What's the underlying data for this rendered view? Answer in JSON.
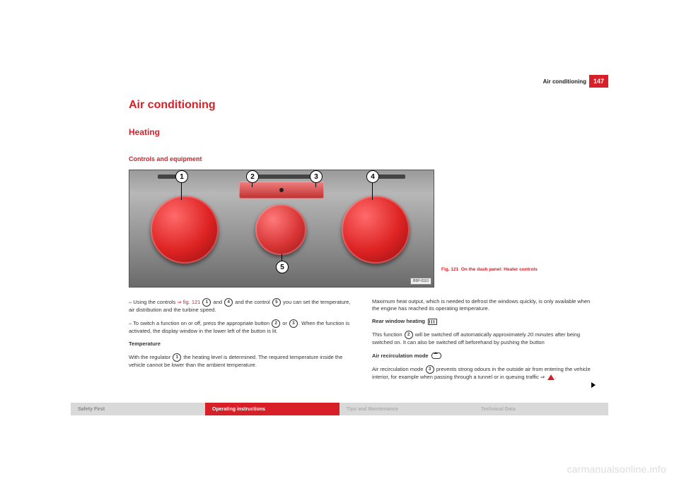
{
  "header": {
    "chapter": "Air conditioning",
    "page_number": "147"
  },
  "title": "Air conditioning",
  "subtitle": "Heating",
  "section": "Controls and equipment",
  "figure": {
    "image_badge": "B5P-0110",
    "caption_prefix": "Fig. 121",
    "caption_text": "On the dash panel: Heater controls",
    "callouts": {
      "c1": "1",
      "c2": "2",
      "c3": "3",
      "c4": "4",
      "c5": "5"
    },
    "colors": {
      "panel_bg_top": "#9a9a9a",
      "panel_bg_bottom": "#6a6a6a",
      "dial_color": "#d22",
      "accent_red": "#d61f26"
    }
  },
  "left": {
    "p1a": "– Using the controls ",
    "p1_link": "⇒ fig. 121",
    "p1b": " and ",
    "p1c": " and the control ",
    "p1d": " you can set the temperature, air distribution and the turbine speed.",
    "p2a": "– To switch a function on or off, press the appropriate button ",
    "p2b": " or ",
    "p2c": ". When the function is activated, the display window in the lower left of the button is lit.",
    "h_temp": "Temperature",
    "p3a": "With the regulator ",
    "p3b": " the heating level is determined. The required temperature inside the vehicle cannot be lower than the ambient temperature."
  },
  "right": {
    "p1": "Maximum heat output, which is needed to defrost the windows quickly, is only available when the engine has reached its operating temperature.",
    "h_rear": "Rear window heating ",
    "p2a": "This function ",
    "p2b": " will be switched off automatically approximately ",
    "p2i": "20 minutes",
    "p2c": " after being switched on. It can also be switched off beforehand by pushing the button",
    "h_recirc": "Air recirculation mode ",
    "p3a": "Air recirculation mode ",
    "p3b": " prevents strong odours in the outside air from entering the vehicle interior, for example when passing through a tunnel or in queuing traffic ⇒ ",
    "p3c": "."
  },
  "tabs": {
    "t1": "Safety First",
    "t2": "Operating instructions",
    "t3": "Tips and Maintenance",
    "t4": "Technical Data"
  },
  "watermark": "carmanualsonline.info"
}
